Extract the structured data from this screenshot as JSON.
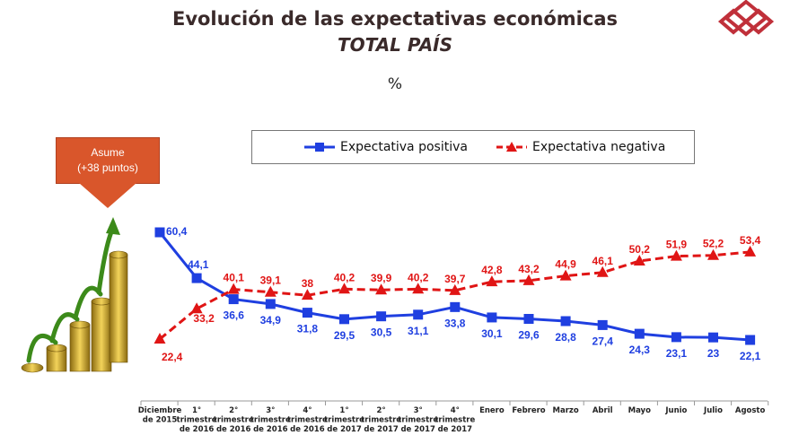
{
  "header": {
    "title": "Evolución de las expectativas económicas",
    "subtitle": "TOTAL PAÍS",
    "unit": "%"
  },
  "callout": {
    "line1": "Asume",
    "line2": "(+38 puntos)"
  },
  "colors": {
    "positive": "#1f3fe0",
    "negative": "#e01515",
    "callout": "#d9562b"
  },
  "chart_data": {
    "type": "line",
    "categories": [
      [
        "Diciembre",
        "de 2015"
      ],
      [
        "1°",
        "trimestre",
        "de 2016"
      ],
      [
        "2°",
        "trimestre",
        "de 2016"
      ],
      [
        "3°",
        "trimestre",
        "de 2016"
      ],
      [
        "4°",
        "trimestre",
        "de 2016"
      ],
      [
        "1°",
        "trimestre",
        "de 2017"
      ],
      [
        "2°",
        "trimestre",
        "de 2017"
      ],
      [
        "3°",
        "trimestre",
        "de 2017"
      ],
      [
        "4°",
        "trimestre",
        "de 2017"
      ],
      [
        "Enero"
      ],
      [
        "Febrero"
      ],
      [
        "Marzo"
      ],
      [
        "Abril"
      ],
      [
        "Mayo"
      ],
      [
        "Junio"
      ],
      [
        "Julio"
      ],
      [
        "Agosto"
      ]
    ],
    "series": [
      {
        "name": "Expectativa positiva",
        "color": "#1f3fe0",
        "style": "solid",
        "marker": "square",
        "values": [
          60.4,
          44.1,
          36.6,
          34.9,
          31.8,
          29.5,
          30.5,
          31.1,
          33.8,
          30.1,
          29.6,
          28.8,
          27.4,
          24.3,
          23.1,
          23,
          22.1
        ],
        "labels": [
          "60,4",
          "44,1",
          "36,6",
          "34,9",
          "31,8",
          "29,5",
          "30,5",
          "31,1",
          "33,8",
          "30,1",
          "29,6",
          "28,8",
          "27,4",
          "24,3",
          "23,1",
          "23",
          "22,1"
        ]
      },
      {
        "name": "Expectativa negativa",
        "color": "#e01515",
        "style": "dashed",
        "marker": "triangle",
        "values": [
          22.4,
          33.2,
          40.1,
          39.1,
          38,
          40.2,
          39.9,
          40.2,
          39.7,
          42.8,
          43.2,
          44.9,
          46.1,
          50.2,
          51.9,
          52.2,
          53.4
        ],
        "labels": [
          "22,4",
          "33,2",
          "40,1",
          "39,1",
          "38",
          "40,2",
          "39,9",
          "40,2",
          "39,7",
          "42,8",
          "43,2",
          "44,9",
          "46,1",
          "50,2",
          "51,9",
          "52,2",
          "53,4"
        ]
      }
    ],
    "grid": false,
    "legend": "top"
  }
}
